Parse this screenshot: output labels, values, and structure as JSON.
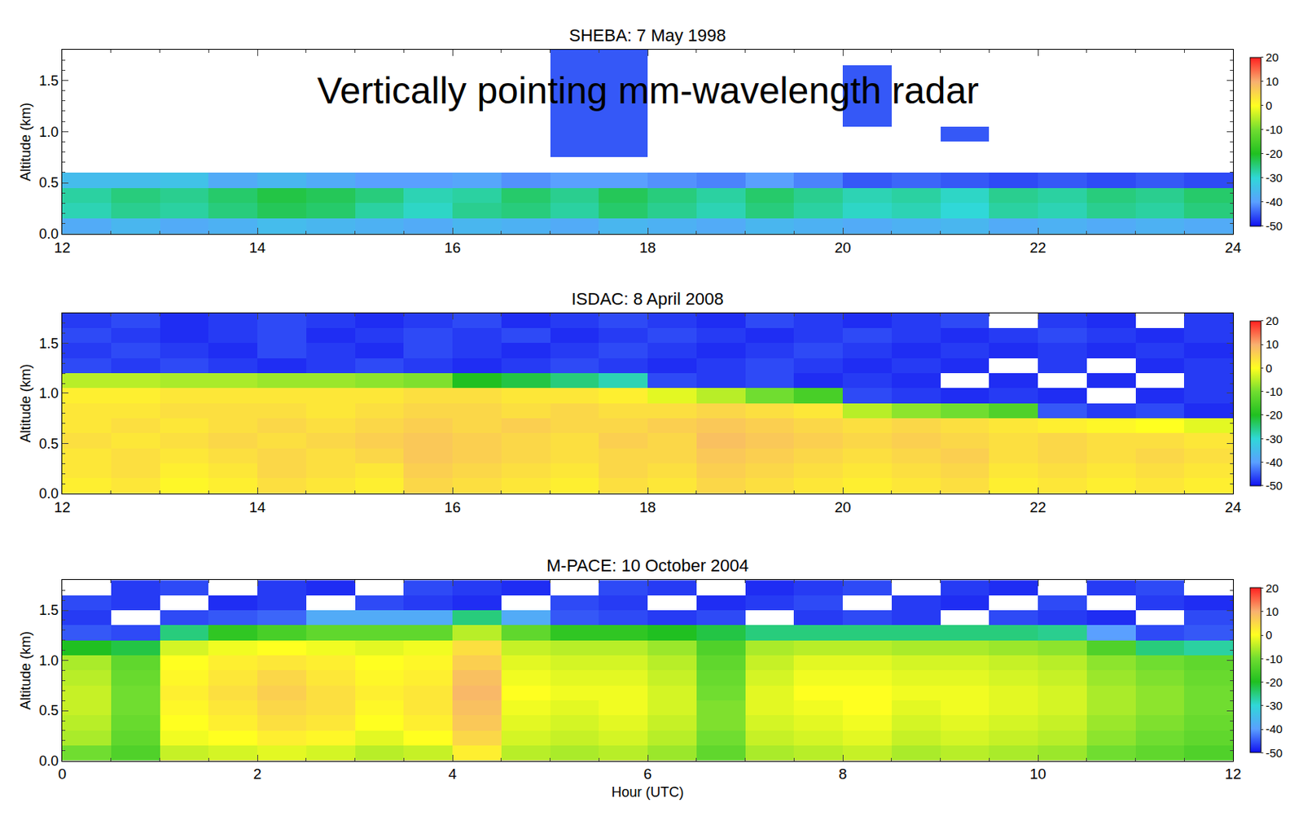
{
  "chart_data": [
    {
      "type": "heatmap",
      "title": "SHEBA: 7 May 1998",
      "annotations": [
        "Vertically pointing mm-wavelength radar"
      ],
      "x": [
        12.25,
        12.75,
        13.25,
        13.75,
        14.25,
        14.75,
        15.25,
        15.75,
        16.25,
        16.75,
        17.25,
        17.75,
        18.25,
        18.75,
        19.25,
        19.75,
        20.25,
        20.75,
        21.25,
        21.75,
        22.25,
        22.75,
        23.25,
        23.75
      ],
      "y": [
        0.075,
        0.225,
        0.375,
        0.525,
        0.675,
        0.825,
        0.975,
        1.125,
        1.275,
        1.425,
        1.575,
        1.725
      ],
      "z": [
        [
          -38,
          -36,
          -38,
          -37,
          -35,
          -36,
          -37,
          -38,
          -36,
          -37,
          -38,
          -36,
          -37,
          -38,
          -36,
          -37,
          -38,
          -37,
          -36,
          -38,
          -37,
          -38,
          -37,
          -38
        ],
        [
          -28,
          -26,
          -27,
          -25,
          -23,
          -24,
          -27,
          -29,
          -26,
          -25,
          -27,
          -24,
          -26,
          -28,
          -25,
          -27,
          -29,
          -28,
          -30,
          -27,
          -28,
          -26,
          -27,
          -25
        ],
        [
          -27,
          -25,
          -26,
          -24,
          -22,
          -23,
          -25,
          -28,
          -27,
          -24,
          -26,
          -23,
          -25,
          -27,
          -24,
          -26,
          -28,
          -27,
          -29,
          -26,
          -27,
          -25,
          -26,
          -24
        ],
        [
          -35,
          -35,
          -34,
          -38,
          -36,
          -38,
          -40,
          -40,
          -39,
          -41,
          -40,
          -40,
          -41,
          -42,
          -40,
          -42,
          -45,
          -44,
          -45,
          -46,
          -45,
          -46,
          -45,
          -46
        ],
        [
          null,
          null,
          null,
          null,
          null,
          null,
          null,
          null,
          null,
          null,
          null,
          null,
          null,
          null,
          null,
          null,
          null,
          null,
          null,
          null,
          null,
          null,
          null,
          null
        ],
        [
          null,
          null,
          null,
          null,
          null,
          null,
          null,
          null,
          null,
          null,
          -45,
          -45,
          null,
          null,
          null,
          null,
          null,
          null,
          null,
          null,
          null,
          null,
          null,
          null
        ],
        [
          null,
          null,
          null,
          null,
          null,
          null,
          null,
          null,
          null,
          null,
          -45,
          -45,
          null,
          null,
          null,
          null,
          null,
          null,
          -45,
          null,
          null,
          null,
          null,
          null
        ],
        [
          null,
          null,
          null,
          null,
          null,
          null,
          null,
          null,
          null,
          null,
          -45,
          -45,
          null,
          null,
          null,
          null,
          -45,
          null,
          null,
          null,
          null,
          null,
          null,
          null
        ],
        [
          null,
          null,
          null,
          null,
          null,
          null,
          null,
          null,
          null,
          null,
          -45,
          -45,
          null,
          null,
          null,
          null,
          -45,
          null,
          null,
          null,
          null,
          null,
          null,
          null
        ],
        [
          null,
          null,
          null,
          null,
          null,
          null,
          null,
          null,
          null,
          null,
          -45,
          -45,
          null,
          null,
          null,
          null,
          -45,
          null,
          null,
          null,
          null,
          null,
          null,
          null
        ],
        [
          null,
          null,
          null,
          null,
          null,
          null,
          null,
          null,
          null,
          null,
          -45,
          -45,
          null,
          null,
          null,
          null,
          -45,
          null,
          null,
          null,
          null,
          null,
          null,
          null
        ],
        [
          null,
          null,
          null,
          null,
          null,
          null,
          null,
          null,
          null,
          null,
          -45,
          -45,
          null,
          null,
          null,
          null,
          null,
          null,
          null,
          null,
          null,
          null,
          null,
          null
        ]
      ],
      "xlim": [
        12,
        24
      ],
      "xticks": [
        12,
        14,
        16,
        18,
        20,
        22,
        24
      ],
      "ylim": [
        0,
        1.8
      ],
      "yticks": [
        {
          "value": 0,
          "label": "0.0"
        },
        {
          "value": 0.5,
          "label": "0.5"
        },
        {
          "value": 1,
          "label": "1.0"
        },
        {
          "value": 1.5,
          "label": "1.5"
        }
      ],
      "y_label": "Altitude (km)",
      "zlim": [
        -50,
        20
      ],
      "zticks": [
        20,
        10,
        0,
        -10,
        -20,
        -30,
        -40,
        -50
      ]
    },
    {
      "type": "heatmap",
      "title": "ISDAC: 8 April 2008",
      "x": [
        12.25,
        12.75,
        13.25,
        13.75,
        14.25,
        14.75,
        15.25,
        15.75,
        16.25,
        16.75,
        17.25,
        17.75,
        18.25,
        18.75,
        19.25,
        19.75,
        20.25,
        20.75,
        21.25,
        21.75,
        22.25,
        22.75,
        23.25,
        23.75
      ],
      "y": [
        0.075,
        0.225,
        0.375,
        0.525,
        0.675,
        0.825,
        0.975,
        1.125,
        1.275,
        1.425,
        1.575,
        1.725
      ],
      "z": [
        [
          2,
          3,
          1,
          2,
          4,
          3,
          2,
          5,
          4,
          3,
          2,
          4,
          3,
          5,
          4,
          3,
          2,
          3,
          4,
          2,
          3,
          2,
          3,
          2
        ],
        [
          3,
          4,
          2,
          3,
          5,
          4,
          3,
          6,
          5,
          4,
          3,
          5,
          4,
          6,
          5,
          4,
          3,
          4,
          5,
          3,
          4,
          3,
          4,
          3
        ],
        [
          3,
          4,
          3,
          4,
          5,
          4,
          5,
          7,
          6,
          5,
          4,
          5,
          5,
          7,
          6,
          5,
          4,
          5,
          6,
          4,
          5,
          4,
          5,
          4
        ],
        [
          4,
          3,
          4,
          5,
          4,
          5,
          6,
          7,
          6,
          5,
          4,
          6,
          5,
          8,
          7,
          6,
          5,
          6,
          5,
          4,
          5,
          4,
          4,
          3
        ],
        [
          3,
          4,
          3,
          4,
          5,
          4,
          5,
          6,
          5,
          6,
          5,
          5,
          6,
          7,
          6,
          5,
          4,
          5,
          4,
          3,
          2,
          1,
          0,
          -2
        ],
        [
          3,
          3,
          4,
          4,
          4,
          3,
          4,
          5,
          5,
          4,
          5,
          4,
          4,
          5,
          4,
          3,
          -5,
          -8,
          -10,
          -14,
          -45,
          -47,
          -46,
          -48
        ],
        [
          2,
          2,
          3,
          3,
          3,
          3,
          3,
          4,
          4,
          3,
          3,
          2,
          -2,
          -5,
          -10,
          -15,
          -46,
          -47,
          -48,
          -47,
          -48,
          null,
          -48,
          -47
        ],
        [
          -5,
          -5,
          -6,
          -6,
          -7,
          -7,
          -8,
          -9,
          -20,
          -22,
          -25,
          -28,
          -46,
          -47,
          -46,
          -48,
          -47,
          -48,
          null,
          -48,
          null,
          -48,
          null,
          -47
        ],
        [
          -46,
          -47,
          -46,
          -47,
          -48,
          -47,
          -46,
          -47,
          -48,
          -47,
          -46,
          -47,
          -48,
          -47,
          -46,
          -47,
          -48,
          -47,
          -48,
          null,
          -47,
          null,
          -48,
          -47
        ],
        [
          -47,
          -46,
          -47,
          -48,
          -46,
          -47,
          -48,
          -46,
          -47,
          -48,
          -47,
          -46,
          -47,
          -48,
          -47,
          -46,
          -47,
          -48,
          -47,
          -48,
          -47,
          -48,
          -47,
          -48
        ],
        [
          -46,
          -47,
          -48,
          -47,
          -46,
          -48,
          -47,
          -46,
          -47,
          -46,
          -48,
          -47,
          -46,
          -47,
          -48,
          -47,
          -46,
          -47,
          -48,
          -47,
          -46,
          -47,
          -48,
          -47
        ],
        [
          -47,
          -46,
          -48,
          -47,
          -46,
          -47,
          -48,
          -47,
          -46,
          -48,
          -47,
          -46,
          -47,
          -48,
          -46,
          -47,
          -48,
          -47,
          -46,
          null,
          -47,
          -48,
          null,
          -47
        ]
      ],
      "xlim": [
        12,
        24
      ],
      "xticks": [
        12,
        14,
        16,
        18,
        20,
        22,
        24
      ],
      "ylim": [
        0,
        1.8
      ],
      "yticks": [
        {
          "value": 0,
          "label": "0.0"
        },
        {
          "value": 0.5,
          "label": "0.5"
        },
        {
          "value": 1,
          "label": "1.0"
        },
        {
          "value": 1.5,
          "label": "1.5"
        }
      ],
      "y_label": "Altitude (km)",
      "zlim": [
        -50,
        20
      ],
      "zticks": [
        20,
        10,
        0,
        -10,
        -20,
        -30,
        -40,
        -50
      ]
    },
    {
      "type": "heatmap",
      "title": "M-PACE: 10 October 2004",
      "x": [
        0.25,
        0.75,
        1.25,
        1.75,
        2.25,
        2.75,
        3.25,
        3.75,
        4.25,
        4.75,
        5.25,
        5.75,
        6.25,
        6.75,
        7.25,
        7.75,
        8.25,
        8.75,
        9.25,
        9.75,
        10.25,
        10.75,
        11.25,
        11.75
      ],
      "y": [
        0.075,
        0.225,
        0.375,
        0.525,
        0.675,
        0.825,
        0.975,
        1.125,
        1.275,
        1.425,
        1.575,
        1.725
      ],
      "z": [
        [
          -10,
          -14,
          -4,
          -3,
          -2,
          -3,
          -5,
          -4,
          2,
          -5,
          -6,
          -5,
          -7,
          -12,
          -6,
          -5,
          -4,
          -6,
          -5,
          -6,
          -7,
          -10,
          -12,
          -14
        ],
        [
          -6,
          -12,
          -1,
          0,
          2,
          1,
          -2,
          0,
          5,
          -3,
          -4,
          -3,
          -5,
          -10,
          -4,
          -3,
          -2,
          -4,
          -3,
          -4,
          -5,
          -8,
          -10,
          -12
        ],
        [
          -5,
          -11,
          0,
          2,
          4,
          3,
          0,
          2,
          7,
          -2,
          -3,
          -2,
          -4,
          -9,
          -3,
          -2,
          -1,
          -3,
          -2,
          -3,
          -4,
          -7,
          -9,
          -11
        ],
        [
          -4,
          -10,
          1,
          3,
          5,
          4,
          1,
          3,
          8,
          -1,
          -2,
          -1,
          -3,
          -9,
          -2,
          -1,
          0,
          -2,
          -1,
          -2,
          -3,
          -6,
          -8,
          -10
        ],
        [
          -4,
          -10,
          2,
          4,
          6,
          4,
          2,
          3,
          9,
          0,
          -1,
          -1,
          -3,
          -10,
          -2,
          0,
          0,
          -1,
          -1,
          -2,
          -3,
          -6,
          -8,
          -10
        ],
        [
          -5,
          -11,
          1,
          3,
          5,
          3,
          1,
          2,
          8,
          -1,
          -2,
          -2,
          -4,
          -11,
          -3,
          -1,
          -1,
          -2,
          -2,
          -3,
          -4,
          -7,
          -9,
          -11
        ],
        [
          -6,
          -12,
          0,
          2,
          3,
          2,
          0,
          1,
          6,
          -2,
          -3,
          -3,
          -5,
          -12,
          -4,
          -2,
          -2,
          -3,
          -3,
          -4,
          -5,
          -8,
          -10,
          -12
        ],
        [
          -20,
          -22,
          -3,
          -1,
          0,
          -1,
          -2,
          -1,
          4,
          -4,
          -5,
          -5,
          -7,
          -14,
          -6,
          -5,
          -5,
          -6,
          -6,
          -7,
          -8,
          -14,
          -25,
          -27
        ],
        [
          -45,
          -46,
          -25,
          -18,
          -15,
          -12,
          -12,
          -12,
          -5,
          -12,
          -18,
          -18,
          -20,
          -22,
          -25,
          -25,
          -25,
          -25,
          -25,
          -25,
          -26,
          -40,
          -46,
          -45
        ],
        [
          -47,
          null,
          -46,
          -45,
          -44,
          -38,
          -38,
          -38,
          -25,
          -38,
          -45,
          -46,
          -47,
          -46,
          null,
          -47,
          -46,
          -47,
          null,
          -46,
          -47,
          -48,
          null,
          -46
        ],
        [
          -46,
          -47,
          null,
          -48,
          -47,
          null,
          -46,
          -47,
          -48,
          null,
          -46,
          -47,
          null,
          -48,
          -47,
          -46,
          null,
          -47,
          -48,
          null,
          -46,
          null,
          -47,
          -48
        ],
        [
          null,
          -47,
          -46,
          null,
          -47,
          -48,
          null,
          -46,
          -47,
          -48,
          null,
          -46,
          -47,
          null,
          -48,
          -47,
          -46,
          null,
          -47,
          -48,
          null,
          -47,
          -46,
          null
        ]
      ],
      "xlim": [
        0,
        12
      ],
      "xticks": [
        0,
        2,
        4,
        6,
        8,
        10,
        12
      ],
      "ylim": [
        0,
        1.8
      ],
      "yticks": [
        {
          "value": 0,
          "label": "0.0"
        },
        {
          "value": 0.5,
          "label": "0.5"
        },
        {
          "value": 1,
          "label": "1.0"
        },
        {
          "value": 1.5,
          "label": "1.5"
        }
      ],
      "x_label": "Hour (UTC)",
      "y_label": "Altitude (km)",
      "zlim": [
        -50,
        20
      ],
      "zticks": [
        20,
        10,
        0,
        -10,
        -20,
        -30,
        -40,
        -50
      ]
    }
  ]
}
